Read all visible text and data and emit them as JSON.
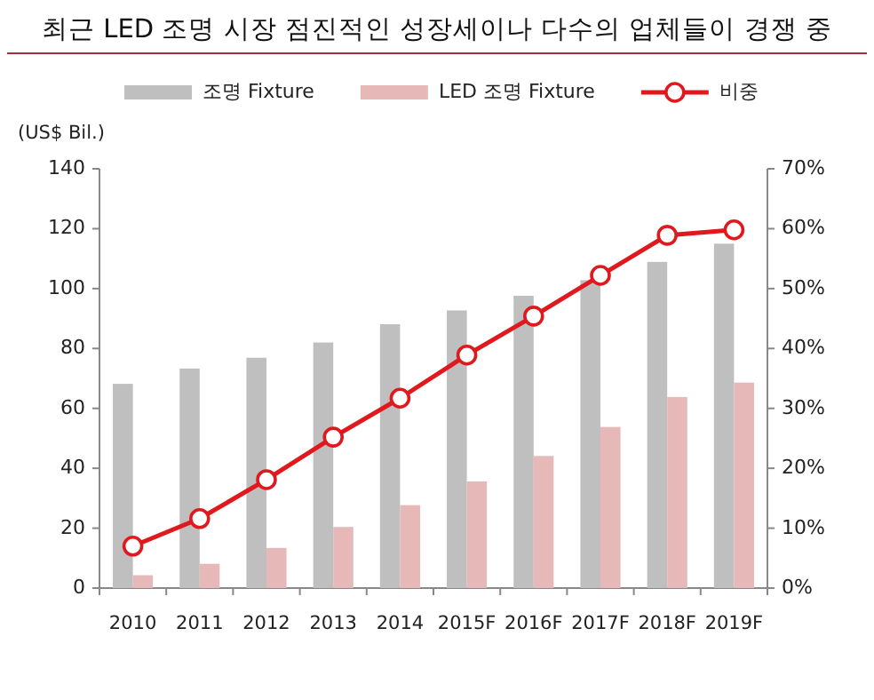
{
  "chart_data": {
    "type": "bar",
    "title": "최근 LED 조명 시장 점진적인 성장세이나 다수의 업체들이 경쟁 중",
    "ylabel": "(US$ Bil.)",
    "categories": [
      "2010",
      "2011",
      "2012",
      "2013",
      "2014",
      "2015F",
      "2016F",
      "2017F",
      "2018F",
      "2019F"
    ],
    "series": [
      {
        "name": "조명 Fixture",
        "color": "#bfbfbf",
        "values": [
          68.2,
          73.3,
          76.9,
          82,
          88.1,
          92.7,
          97.6,
          102.8,
          108.9,
          115
        ]
      },
      {
        "name": "LED 조명 Fixture",
        "color": "#e6b9b8",
        "values": [
          4.3,
          8.1,
          13.4,
          20.4,
          27.7,
          35.6,
          44.1,
          53.8,
          63.8,
          68.6
        ]
      },
      {
        "name": "비중",
        "type": "line",
        "axis": "y2",
        "color": "#e0191e",
        "marker": "circle",
        "values": [
          7.0,
          11.6,
          18.1,
          25.2,
          31.7,
          38.9,
          45.4,
          52.2,
          58.9,
          59.8
        ]
      }
    ],
    "ylim": [
      0,
      140
    ],
    "yticks": [
      0,
      20,
      40,
      60,
      80,
      100,
      120,
      140
    ],
    "y2lim": [
      0,
      70
    ],
    "y2ticks": [
      {
        "value": 0,
        "label": "0%"
      },
      {
        "value": 10,
        "label": "10%"
      },
      {
        "value": 20,
        "label": "20%"
      },
      {
        "value": 30,
        "label": "30%"
      },
      {
        "value": 40,
        "label": "40%"
      },
      {
        "value": 50,
        "label": "50%"
      },
      {
        "value": 60,
        "label": "60%"
      },
      {
        "value": 70,
        "label": "70%"
      }
    ],
    "legend": "top",
    "grid": false
  }
}
